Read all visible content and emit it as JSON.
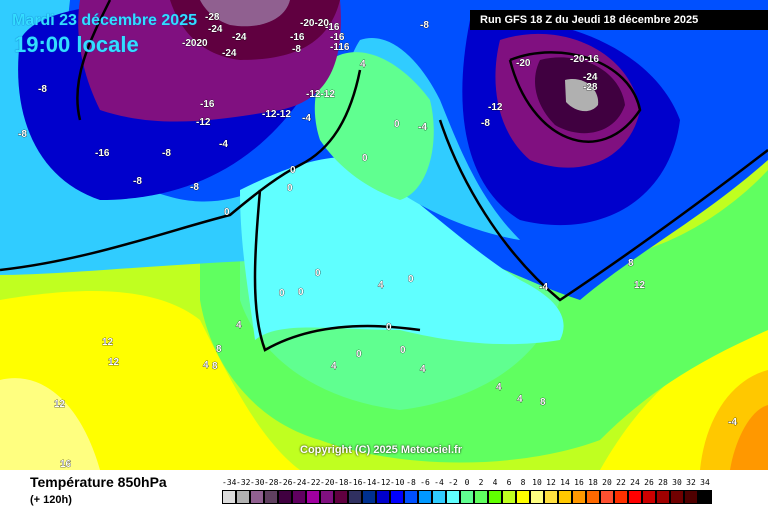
{
  "header": {
    "date": "Mardi 23 décembre 2025",
    "time": "19:00 locale",
    "run": "Run GFS 18 Z du Jeudi 18 décembre 2025"
  },
  "copyright": "Copyright (C) 2025 Meteociel.fr",
  "footer": {
    "title": "Température 850hPa",
    "subtitle": "(+ 120h)"
  },
  "legend": {
    "labels": [
      "-34",
      "-32",
      "-30",
      "-28",
      "-26",
      "-24",
      "-22",
      "-20",
      "-18",
      "-16",
      "-14",
      "-12",
      "-10",
      "-8",
      "-6",
      "-4",
      "-2",
      "0",
      "2",
      "4",
      "6",
      "8",
      "10",
      "12",
      "14",
      "16",
      "18",
      "20",
      "22",
      "24",
      "26",
      "28",
      "30",
      "32",
      "34"
    ],
    "colors": [
      "#dcdcdc",
      "#b0b0b0",
      "#906090",
      "#604060",
      "#400040",
      "#600060",
      "#a000a0",
      "#801080",
      "#600040",
      "#303060",
      "#003090",
      "#0000cc",
      "#0000ff",
      "#0050ff",
      "#0098ff",
      "#30ccff",
      "#60ffff",
      "#60ff90",
      "#60ff60",
      "#60ff00",
      "#c0ff20",
      "#ffff00",
      "#ffff80",
      "#ffe040",
      "#ffc800",
      "#ff9800",
      "#ff6800",
      "#ff5030",
      "#ff3000",
      "#ff0000",
      "#cc0000",
      "#a00000",
      "#700000",
      "#500000",
      "#000000"
    ]
  },
  "contour_labels": [
    "-28",
    "-24",
    "-2020",
    "-24",
    "-24",
    "-16",
    "-8",
    "-20-20",
    "-16",
    "-116",
    "-16",
    "-8",
    "-8",
    "-8",
    "-16",
    "-12",
    "-4",
    "-12-12",
    "-12-12",
    "-4",
    "-16",
    "-8",
    "-8",
    "-20",
    "-20-16",
    "-24",
    "-28",
    "-12",
    "-8",
    "-8",
    "0",
    "0",
    "0",
    "0",
    "0",
    "0",
    "0",
    "0",
    "0",
    "0",
    "0",
    "0",
    "4",
    "4",
    "4",
    "4",
    "4",
    "4",
    "4",
    "4",
    "8",
    "8",
    "8",
    "8",
    "12",
    "12",
    "12",
    "12",
    "16",
    "-4",
    "-4",
    "-4"
  ]
}
